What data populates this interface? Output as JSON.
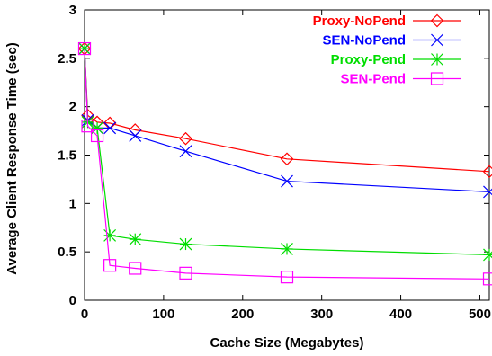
{
  "chart_data": {
    "type": "line",
    "title": "",
    "xlabel": "Cache Size (Megabytes)",
    "ylabel": "Average Client Response Time (sec)",
    "xlim": [
      0,
      512
    ],
    "ylim": [
      0,
      3
    ],
    "xticks": [
      0,
      100,
      200,
      300,
      400,
      500
    ],
    "yticks": [
      0,
      0.5,
      1,
      1.5,
      2,
      2.5,
      3
    ],
    "ytick_labels": [
      "0",
      "0.5",
      "1",
      "1.5",
      "2",
      "2.5",
      "3"
    ],
    "grid": false,
    "legend_position": "top-right",
    "series": [
      {
        "name": "Proxy-NoPend",
        "color": "#ff0000",
        "marker": "diamond",
        "x": [
          0,
          4,
          16,
          32,
          64,
          128,
          256,
          512
        ],
        "y": [
          2.6,
          1.91,
          1.84,
          1.83,
          1.76,
          1.67,
          1.46,
          1.33
        ]
      },
      {
        "name": "SEN-NoPend",
        "color": "#0000ff",
        "marker": "x",
        "x": [
          0,
          4,
          16,
          32,
          64,
          128,
          256,
          512
        ],
        "y": [
          2.6,
          1.86,
          1.78,
          1.78,
          1.7,
          1.54,
          1.23,
          1.12
        ]
      },
      {
        "name": "Proxy-Pend",
        "color": "#00dd00",
        "marker": "star",
        "x": [
          0,
          4,
          16,
          32,
          64,
          128,
          256,
          512
        ],
        "y": [
          2.6,
          1.84,
          1.78,
          0.67,
          0.63,
          0.58,
          0.53,
          0.47
        ]
      },
      {
        "name": "SEN-Pend",
        "color": "#ff00ff",
        "marker": "square",
        "x": [
          0,
          4,
          16,
          32,
          64,
          128,
          256,
          512
        ],
        "y": [
          2.6,
          1.8,
          1.7,
          0.36,
          0.33,
          0.28,
          0.24,
          0.22
        ]
      }
    ]
  }
}
